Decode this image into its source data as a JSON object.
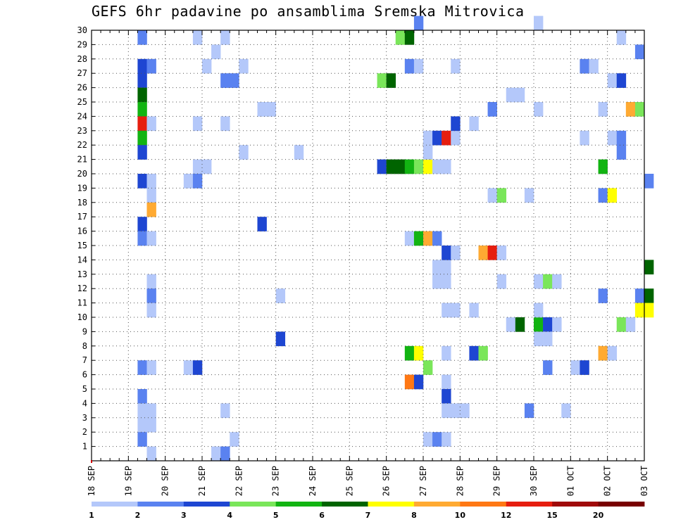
{
  "chart_data": {
    "type": "heatmap",
    "title": "GEFS 6hr padavine po ansamblima Sremska Mitrovica",
    "xlabel": "",
    "ylabel": "",
    "grid": true,
    "x_ticks": [
      "18 SEP",
      "19 SEP",
      "20 SEP",
      "21 SEP",
      "22 SEP",
      "23 SEP",
      "24 SEP",
      "25 SEP",
      "26 SEP",
      "27 SEP",
      "28 SEP",
      "29 SEP",
      "30 SEP",
      "01 OCT",
      "02 OCT",
      "03 OCT"
    ],
    "y_ticks": [
      1,
      2,
      3,
      4,
      5,
      6,
      7,
      8,
      9,
      10,
      11,
      12,
      13,
      14,
      15,
      16,
      17,
      18,
      19,
      20,
      21,
      22,
      23,
      24,
      25,
      26,
      27,
      28,
      29,
      30
    ],
    "x_range_steps": [
      0,
      60
    ],
    "y_range": [
      0,
      30
    ],
    "color_scale": {
      "thresholds": [
        "1",
        "2",
        "3",
        "4",
        "5",
        "6",
        "7",
        "8",
        "10",
        "12",
        "15",
        "20"
      ],
      "colors": [
        "#b4c8fa",
        "#5a82f0",
        "#1e46d2",
        "#7ae65a",
        "#12b412",
        "#006400",
        "#ffff00",
        "#ffaa32",
        "#ff7814",
        "#e61e0f",
        "#a00a0a",
        "#780000"
      ]
    },
    "cells": [
      [
        5,
        29,
        1
      ],
      [
        5,
        27,
        2
      ],
      [
        5,
        26,
        2
      ],
      [
        5,
        25,
        5
      ],
      [
        5,
        24,
        4
      ],
      [
        5,
        23,
        9
      ],
      [
        5,
        22,
        4
      ],
      [
        5,
        21,
        2
      ],
      [
        5,
        19,
        2
      ],
      [
        5,
        16,
        2
      ],
      [
        5,
        15,
        1
      ],
      [
        5,
        6,
        1
      ],
      [
        5,
        4,
        1
      ],
      [
        5,
        3,
        0
      ],
      [
        5,
        2,
        0
      ],
      [
        5,
        1,
        1
      ],
      [
        6,
        27,
        1
      ],
      [
        6,
        23,
        0
      ],
      [
        6,
        19,
        0
      ],
      [
        6,
        18,
        0
      ],
      [
        6,
        17,
        7
      ],
      [
        6,
        15,
        0
      ],
      [
        6,
        12,
        0
      ],
      [
        6,
        11,
        1
      ],
      [
        6,
        10,
        0
      ],
      [
        6,
        6,
        0
      ],
      [
        6,
        3,
        0
      ],
      [
        6,
        2,
        0
      ],
      [
        6,
        0,
        0
      ],
      [
        10,
        19,
        0
      ],
      [
        10,
        6,
        0
      ],
      [
        11,
        29,
        0
      ],
      [
        11,
        23,
        0
      ],
      [
        11,
        20,
        0
      ],
      [
        11,
        19,
        1
      ],
      [
        11,
        6,
        2
      ],
      [
        12,
        27,
        0
      ],
      [
        12,
        20,
        0
      ],
      [
        13,
        28,
        0
      ],
      [
        13,
        0,
        0
      ],
      [
        14,
        29,
        0
      ],
      [
        14,
        26,
        1
      ],
      [
        14,
        23,
        0
      ],
      [
        14,
        3,
        0
      ],
      [
        14,
        0,
        1
      ],
      [
        15,
        26,
        1
      ],
      [
        15,
        1,
        0
      ],
      [
        16,
        27,
        0
      ],
      [
        16,
        21,
        0
      ],
      [
        18,
        24,
        0
      ],
      [
        19,
        24,
        0
      ],
      [
        18,
        16,
        2
      ],
      [
        20,
        11,
        0
      ],
      [
        20,
        8,
        2
      ],
      [
        22,
        21,
        0
      ],
      [
        31,
        26,
        3
      ],
      [
        32,
        26,
        5
      ],
      [
        31,
        20,
        2
      ],
      [
        32,
        20,
        5
      ],
      [
        33,
        20,
        5
      ],
      [
        34,
        20,
        4
      ],
      [
        35,
        20,
        3
      ],
      [
        36,
        20,
        6
      ],
      [
        37,
        20,
        0
      ],
      [
        38,
        20,
        0
      ],
      [
        33,
        29,
        3
      ],
      [
        34,
        29,
        5
      ],
      [
        34,
        27,
        1
      ],
      [
        35,
        27,
        0
      ],
      [
        34,
        15,
        0
      ],
      [
        35,
        15,
        4
      ],
      [
        36,
        15,
        7
      ],
      [
        37,
        15,
        1
      ],
      [
        34,
        7,
        4
      ],
      [
        35,
        7,
        6
      ],
      [
        34,
        5,
        8
      ],
      [
        35,
        5,
        2
      ],
      [
        35,
        30,
        1
      ],
      [
        36,
        22,
        0
      ],
      [
        36,
        21,
        0
      ],
      [
        37,
        22,
        2
      ],
      [
        38,
        22,
        9
      ],
      [
        39,
        22,
        0
      ],
      [
        36,
        6,
        3
      ],
      [
        36,
        1,
        0
      ],
      [
        37,
        1,
        1
      ],
      [
        38,
        1,
        0
      ],
      [
        37,
        13,
        0
      ],
      [
        38,
        13,
        0
      ],
      [
        37,
        12,
        0
      ],
      [
        38,
        12,
        0
      ],
      [
        38,
        14,
        2
      ],
      [
        39,
        14,
        0
      ],
      [
        38,
        10,
        0
      ],
      [
        39,
        10,
        0
      ],
      [
        38,
        7,
        0
      ],
      [
        38,
        5,
        0
      ],
      [
        38,
        4,
        2
      ],
      [
        38,
        3,
        0
      ],
      [
        39,
        3,
        0
      ],
      [
        40,
        3,
        0
      ],
      [
        39,
        27,
        0
      ],
      [
        39,
        23,
        2
      ],
      [
        41,
        23,
        0
      ],
      [
        41,
        10,
        0
      ],
      [
        41,
        7,
        2
      ],
      [
        42,
        7,
        3
      ],
      [
        42,
        14,
        7
      ],
      [
        43,
        14,
        9
      ],
      [
        44,
        14,
        0
      ],
      [
        44,
        12,
        0
      ],
      [
        43,
        24,
        1
      ],
      [
        43,
        18,
        0
      ],
      [
        44,
        18,
        3
      ],
      [
        45,
        25,
        0
      ],
      [
        46,
        25,
        0
      ],
      [
        45,
        9,
        0
      ],
      [
        46,
        9,
        5
      ],
      [
        47,
        3,
        1
      ],
      [
        47,
        18,
        0
      ],
      [
        48,
        9,
        4
      ],
      [
        49,
        9,
        2
      ],
      [
        50,
        9,
        0
      ],
      [
        48,
        8,
        0
      ],
      [
        49,
        8,
        0
      ],
      [
        48,
        30,
        0
      ],
      [
        48,
        24,
        0
      ],
      [
        48,
        12,
        0
      ],
      [
        49,
        12,
        3
      ],
      [
        48,
        10,
        0
      ],
      [
        50,
        12,
        0
      ],
      [
        49,
        6,
        1
      ],
      [
        51,
        3,
        0
      ],
      [
        52,
        6,
        0
      ],
      [
        53,
        6,
        2
      ],
      [
        53,
        27,
        1
      ],
      [
        54,
        27,
        0
      ],
      [
        53,
        22,
        0
      ],
      [
        55,
        24,
        0
      ],
      [
        55,
        20,
        4
      ],
      [
        55,
        18,
        1
      ],
      [
        55,
        11,
        1
      ],
      [
        55,
        7,
        7
      ],
      [
        56,
        7,
        0
      ],
      [
        56,
        26,
        0
      ],
      [
        57,
        26,
        2
      ],
      [
        56,
        22,
        0
      ],
      [
        57,
        22,
        1
      ],
      [
        57,
        21,
        1
      ],
      [
        56,
        18,
        6
      ],
      [
        57,
        29,
        0
      ],
      [
        57,
        9,
        3
      ],
      [
        58,
        9,
        0
      ],
      [
        58,
        24,
        7
      ],
      [
        59,
        24,
        3
      ],
      [
        59,
        28,
        1
      ],
      [
        59,
        11,
        1
      ],
      [
        59,
        10,
        6
      ],
      [
        60,
        19,
        1
      ],
      [
        60,
        13,
        5
      ],
      [
        60,
        11,
        5
      ],
      [
        60,
        10,
        6
      ]
    ]
  }
}
